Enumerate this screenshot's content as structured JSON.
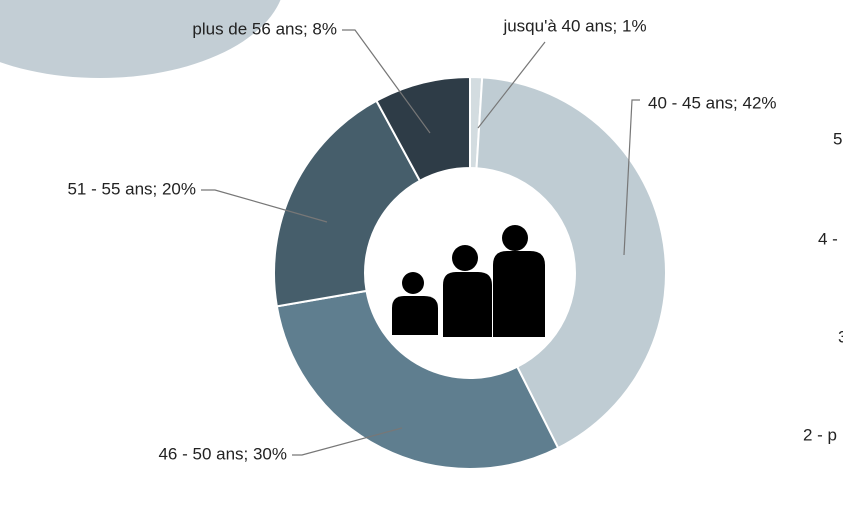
{
  "chart_data": {
    "type": "donut",
    "values": [
      1,
      42,
      30,
      20,
      8
    ],
    "value_labels": [
      "jusqu'à 40 ans; 1%",
      "40 - 45 ans; 42%",
      "46 - 50 ans; 30%",
      "51 - 55 ans; 20%",
      "plus de 56 ans; 8%"
    ],
    "colors": [
      "#d3dce0",
      "#bfccd3",
      "#5f7e8f",
      "#465e6b",
      "#2e3c47"
    ],
    "side_labels": [
      "5",
      "4 -",
      "3",
      "2 - p"
    ]
  }
}
